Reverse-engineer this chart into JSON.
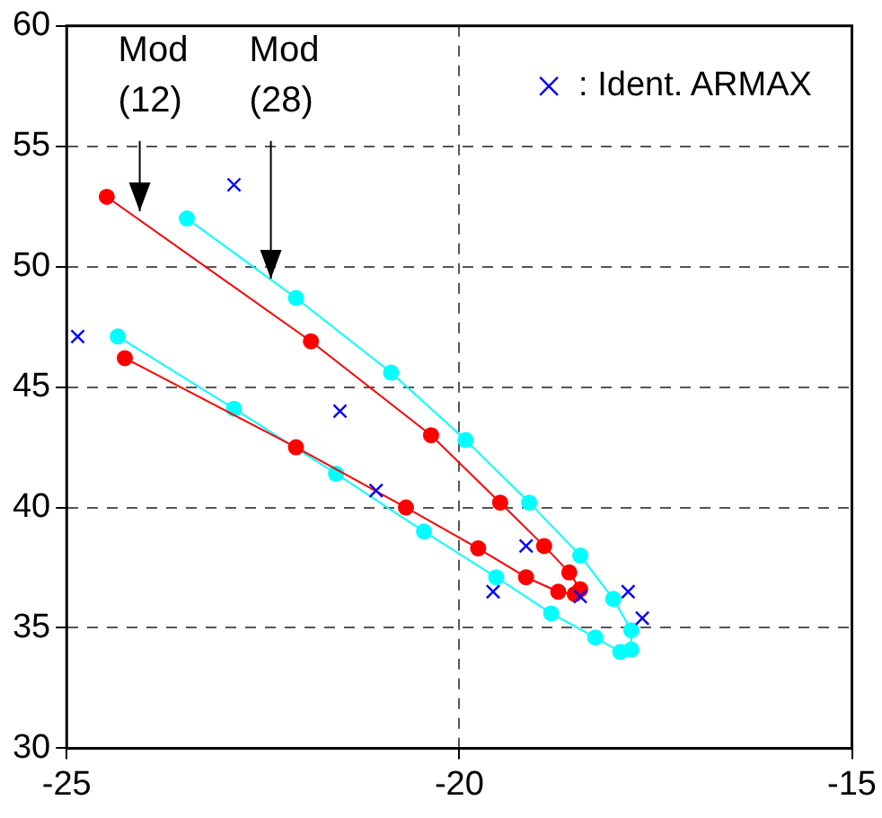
{
  "chart_data": {
    "type": "line",
    "marker": "circle",
    "line_style": "solid",
    "grid": true,
    "legend": "top right",
    "xlim": [
      -25,
      -15
    ],
    "xticks": [
      -25,
      -20,
      -15
    ],
    "ylim": [
      30,
      60
    ],
    "yticks": [
      30,
      35,
      40,
      45,
      50,
      55,
      60
    ],
    "annotations": [
      {
        "text": "Mod\n(12)",
        "x": -24.07,
        "y": 52.3
      },
      {
        "text": "Mod\n(28)",
        "x": -22.4,
        "y": 49.5
      }
    ],
    "series": [
      {
        "color": "#ff0000",
        "x": [
          -24.49,
          -21.89,
          -20.36,
          -19.48,
          -18.92,
          -18.6,
          -18.46,
          -18.53,
          -18.74,
          -19.15,
          -19.76,
          -20.68,
          -22.08,
          -24.26
        ],
        "values": [
          52.9,
          46.9,
          43.0,
          40.2,
          38.4,
          37.3,
          36.6,
          36.4,
          36.5,
          37.1,
          38.3,
          40.0,
          42.5,
          46.2
        ]
      },
      {
        "color": "#00ffff",
        "x": [
          -23.47,
          -22.08,
          -20.87,
          -19.92,
          -19.11,
          -18.46,
          -18.04,
          -17.81,
          -17.81,
          -17.95,
          -18.27,
          -18.83,
          -19.53,
          -20.45,
          -21.57,
          -22.87,
          -24.35
        ],
        "values": [
          52.0,
          48.7,
          45.6,
          42.8,
          40.2,
          38.0,
          36.2,
          34.9,
          34.1,
          34.0,
          34.6,
          35.6,
          37.1,
          39.0,
          41.4,
          44.1,
          47.1
        ]
      },
      {
        "type": "scatter",
        "marker": "cross",
        "name": ": Ident. ARMAX",
        "color": "#0000ff",
        "x": [
          -22.87,
          -24.86,
          -21.52,
          -21.06,
          -19.15,
          -19.57,
          -18.46,
          -17.85,
          -17.67
        ],
        "values": [
          53.4,
          47.1,
          44.0,
          40.7,
          38.4,
          36.5,
          36.3,
          36.5,
          35.4
        ]
      }
    ]
  }
}
